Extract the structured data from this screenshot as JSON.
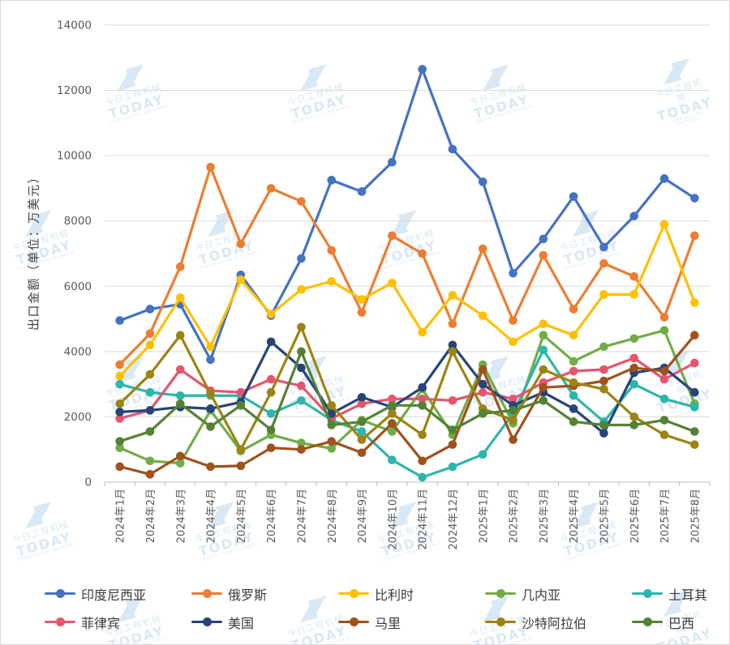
{
  "watermark": {
    "mark": "◢◤",
    "cn": "今日工程机械",
    "en": "TODAY",
    "sub": "CONSTRUCTION MACHINERY"
  },
  "chart_data": {
    "type": "line",
    "title": "",
    "xlabel": "",
    "ylabel": "出口金额（单位：万美元）",
    "ylim": [
      0,
      14000
    ],
    "yticks": [
      0,
      2000,
      4000,
      6000,
      8000,
      10000,
      12000,
      14000
    ],
    "grid": true,
    "legend_position": "bottom",
    "categories": [
      "2024年1月",
      "2024年2月",
      "2024年3月",
      "2024年4月",
      "2024年5月",
      "2024年6月",
      "2024年7月",
      "2024年8月",
      "2024年9月",
      "2024年10月",
      "2024年11月",
      "2024年12月",
      "2025年1月",
      "2025年2月",
      "2025年3月",
      "2025年4月",
      "2025年5月",
      "2025年6月",
      "2025年7月",
      "2025年8月"
    ],
    "series": [
      {
        "name": "印度尼西亚",
        "color": "#4472C4",
        "values": [
          4950,
          5300,
          5450,
          3750,
          6350,
          5100,
          6850,
          9250,
          8900,
          9800,
          12650,
          10200,
          9200,
          6400,
          7450,
          8750,
          7200,
          8150,
          9300,
          8700
        ]
      },
      {
        "name": "俄罗斯",
        "color": "#ED7D31",
        "values": [
          3600,
          4550,
          6600,
          9650,
          7300,
          9000,
          8600,
          7100,
          5200,
          7550,
          7000,
          4850,
          7150,
          4950,
          6950,
          5300,
          6700,
          6300,
          5050,
          7550
        ]
      },
      {
        "name": "比利时",
        "color": "#FFC000",
        "values": [
          3250,
          4200,
          5650,
          4150,
          6200,
          5150,
          5900,
          6150,
          5600,
          6100,
          4590,
          5730,
          5100,
          4300,
          4850,
          4500,
          5750,
          5750,
          7900,
          5500
        ]
      },
      {
        "name": "几内亚",
        "color": "#70AD47",
        "values": [
          1050,
          650,
          580,
          2200,
          950,
          1450,
          1200,
          1030,
          1900,
          1550,
          2850,
          1450,
          3600,
          1800,
          4500,
          3700,
          4150,
          4400,
          4650,
          2400
        ]
      },
      {
        "name": "土耳其",
        "color": "#2DB6AB",
        "values": [
          3000,
          2750,
          2650,
          2650,
          2650,
          2100,
          2500,
          1900,
          1550,
          680,
          150,
          470,
          850,
          2100,
          4050,
          2650,
          1850,
          3000,
          2550,
          2300
        ]
      },
      {
        "name": "菲律宾",
        "color": "#E4566E",
        "values": [
          1950,
          2200,
          3450,
          2800,
          2750,
          3150,
          2950,
          1950,
          2400,
          2550,
          2550,
          2500,
          2750,
          2550,
          3050,
          3400,
          3450,
          3800,
          3150,
          3650
        ]
      },
      {
        "name": "美国",
        "color": "#264478",
        "values": [
          2150,
          2200,
          2300,
          2250,
          2450,
          4300,
          3500,
          2100,
          2600,
          2300,
          2900,
          4200,
          3000,
          2350,
          2750,
          2250,
          1500,
          3350,
          3500,
          2750
        ]
      },
      {
        "name": "马里",
        "color": "#A0521D",
        "values": [
          475,
          240,
          800,
          475,
          500,
          1050,
          1000,
          1250,
          900,
          1800,
          650,
          1150,
          3450,
          1300,
          2900,
          2950,
          3100,
          3500,
          3400,
          4500
        ]
      },
      {
        "name": "沙特阿拉伯",
        "color": "#9C8412",
        "values": [
          2400,
          3300,
          4500,
          2700,
          1000,
          2750,
          4750,
          2350,
          1300,
          2100,
          1450,
          4000,
          2250,
          1900,
          3450,
          3050,
          2850,
          2000,
          1450,
          1150
        ]
      },
      {
        "name": "巴西",
        "color": "#548235",
        "values": [
          1250,
          1550,
          2400,
          1700,
          2350,
          1600,
          4000,
          1750,
          1850,
          2350,
          2350,
          1600,
          2100,
          2200,
          2500,
          1850,
          1750,
          1750,
          1900,
          1550
        ]
      }
    ]
  }
}
